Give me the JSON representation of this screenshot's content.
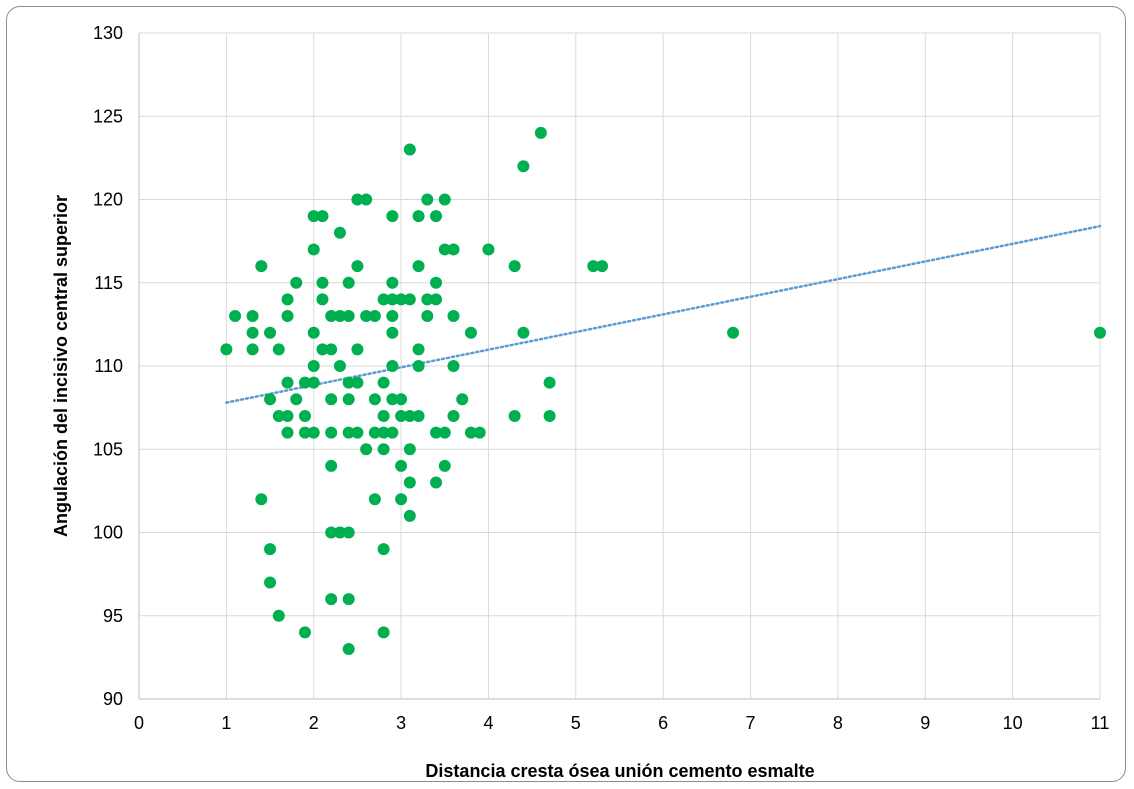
{
  "chart_data": {
    "type": "scatter",
    "title": "",
    "xlabel": "Distancia cresta ósea unión cemento esmalte",
    "ylabel": "Angulación del incisivo central superior",
    "xlim": [
      0,
      11
    ],
    "ylim": [
      90,
      130
    ],
    "x_ticks": [
      "0",
      "1",
      "2",
      "3",
      "4",
      "5",
      "6",
      "7",
      "8",
      "9",
      "10",
      "11"
    ],
    "y_ticks": [
      "90",
      "95",
      "100",
      "105",
      "110",
      "115",
      "120",
      "125",
      "130"
    ],
    "grid": true,
    "legend": "none",
    "colors": {
      "points": "#00b050",
      "trendline": "#5b9bd5",
      "grid": "#d9d9d9"
    },
    "trendline": {
      "type": "linear",
      "style": "dotted",
      "x": [
        1,
        11
      ],
      "y": [
        107.8,
        118.4
      ]
    },
    "points": [
      [
        1,
        111
      ],
      [
        1.1,
        113
      ],
      [
        1.3,
        113
      ],
      [
        1.3,
        112
      ],
      [
        1.3,
        111
      ],
      [
        1.4,
        116
      ],
      [
        1.4,
        102
      ],
      [
        1.5,
        112
      ],
      [
        1.5,
        108
      ],
      [
        1.5,
        99
      ],
      [
        1.5,
        97
      ],
      [
        1.6,
        111
      ],
      [
        1.6,
        107
      ],
      [
        1.6,
        95
      ],
      [
        1.7,
        114
      ],
      [
        1.7,
        113
      ],
      [
        1.7,
        109
      ],
      [
        1.7,
        107
      ],
      [
        1.7,
        106
      ],
      [
        1.8,
        115
      ],
      [
        1.8,
        108
      ],
      [
        1.9,
        109
      ],
      [
        1.9,
        107
      ],
      [
        1.9,
        106
      ],
      [
        1.9,
        94
      ],
      [
        2,
        119
      ],
      [
        2,
        117
      ],
      [
        2,
        112
      ],
      [
        2,
        110
      ],
      [
        2,
        109
      ],
      [
        2,
        106
      ],
      [
        2.1,
        119
      ],
      [
        2.1,
        115
      ],
      [
        2.1,
        114
      ],
      [
        2.1,
        111
      ],
      [
        2.2,
        113
      ],
      [
        2.2,
        111
      ],
      [
        2.2,
        108
      ],
      [
        2.2,
        106
      ],
      [
        2.2,
        104
      ],
      [
        2.2,
        100
      ],
      [
        2.2,
        96
      ],
      [
        2.3,
        118
      ],
      [
        2.3,
        113
      ],
      [
        2.3,
        110
      ],
      [
        2.3,
        100
      ],
      [
        2.4,
        115
      ],
      [
        2.4,
        113
      ],
      [
        2.4,
        109
      ],
      [
        2.4,
        108
      ],
      [
        2.4,
        106
      ],
      [
        2.4,
        100
      ],
      [
        2.4,
        96
      ],
      [
        2.4,
        93
      ],
      [
        2.5,
        120
      ],
      [
        2.5,
        116
      ],
      [
        2.5,
        111
      ],
      [
        2.5,
        109
      ],
      [
        2.5,
        106
      ],
      [
        2.6,
        120
      ],
      [
        2.6,
        113
      ],
      [
        2.6,
        105
      ],
      [
        2.7,
        113
      ],
      [
        2.7,
        108
      ],
      [
        2.7,
        106
      ],
      [
        2.7,
        102
      ],
      [
        2.8,
        114
      ],
      [
        2.8,
        109
      ],
      [
        2.8,
        107
      ],
      [
        2.8,
        106
      ],
      [
        2.8,
        105
      ],
      [
        2.8,
        99
      ],
      [
        2.8,
        94
      ],
      [
        2.9,
        119
      ],
      [
        2.9,
        115
      ],
      [
        2.9,
        114
      ],
      [
        2.9,
        113
      ],
      [
        2.9,
        112
      ],
      [
        2.9,
        110
      ],
      [
        2.9,
        108
      ],
      [
        2.9,
        106
      ],
      [
        3,
        114
      ],
      [
        3,
        108
      ],
      [
        3,
        107
      ],
      [
        3,
        104
      ],
      [
        3,
        102
      ],
      [
        3.1,
        123
      ],
      [
        3.1,
        114
      ],
      [
        3.1,
        107
      ],
      [
        3.1,
        105
      ],
      [
        3.1,
        103
      ],
      [
        3.1,
        101
      ],
      [
        3.2,
        119
      ],
      [
        3.2,
        116
      ],
      [
        3.2,
        111
      ],
      [
        3.2,
        110
      ],
      [
        3.2,
        107
      ],
      [
        3.3,
        120
      ],
      [
        3.3,
        114
      ],
      [
        3.3,
        113
      ],
      [
        3.4,
        119
      ],
      [
        3.4,
        115
      ],
      [
        3.4,
        114
      ],
      [
        3.4,
        106
      ],
      [
        3.4,
        103
      ],
      [
        3.5,
        120
      ],
      [
        3.5,
        117
      ],
      [
        3.5,
        106
      ],
      [
        3.5,
        104
      ],
      [
        3.6,
        117
      ],
      [
        3.6,
        113
      ],
      [
        3.6,
        110
      ],
      [
        3.6,
        107
      ],
      [
        3.7,
        108
      ],
      [
        3.8,
        112
      ],
      [
        3.8,
        106
      ],
      [
        3.9,
        106
      ],
      [
        4,
        117
      ],
      [
        4.3,
        116
      ],
      [
        4.3,
        107
      ],
      [
        4.4,
        122
      ],
      [
        4.4,
        112
      ],
      [
        4.6,
        124
      ],
      [
        4.7,
        109
      ],
      [
        4.7,
        107
      ],
      [
        5.2,
        116
      ],
      [
        5.3,
        116
      ],
      [
        6.8,
        112
      ],
      [
        11,
        112
      ]
    ]
  }
}
